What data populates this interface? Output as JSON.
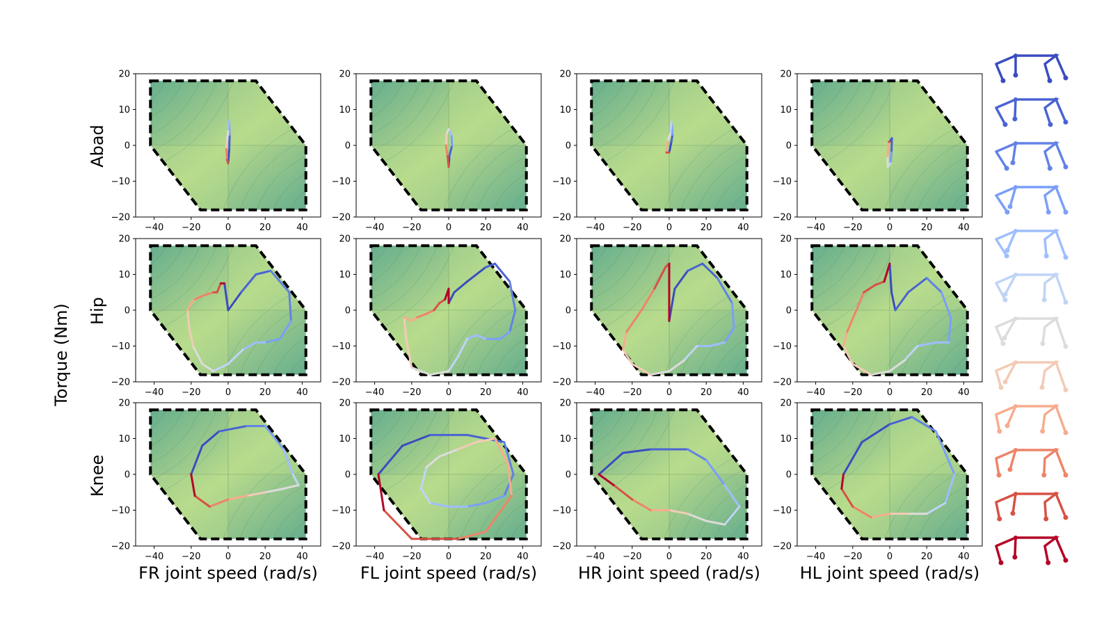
{
  "figure": {
    "ylabel_shared": "Torque (Nm)",
    "row_labels": [
      "Abad",
      "Hip",
      "Knee"
    ],
    "col_labels": [
      "FR joint speed (rad/s)",
      "FL joint speed (rad/s)",
      "HR joint speed (rad/s)",
      "HL joint speed (rad/s)"
    ]
  },
  "colors": {
    "gait_cycle_colormap": [
      "#3b4cc0",
      "#4a63d3",
      "#6282e6",
      "#7b9ff9",
      "#9ebeff",
      "#c0d4f5",
      "#dddcdc",
      "#f2cbb7",
      "#f7ac8e",
      "#ee8468",
      "#d65244",
      "#b40426"
    ],
    "feasible_boundary": "#000000",
    "background_low": "#b8dc8c",
    "background_high": "#5aa88e"
  },
  "chart_data": {
    "type": "line",
    "xlim": [
      -50,
      50
    ],
    "ylim": [
      -20,
      20
    ],
    "xticks": [
      -40,
      -20,
      0,
      20,
      40
    ],
    "yticks": [
      20,
      10,
      0,
      -10,
      -20
    ],
    "grid": false,
    "feasible_region_vertices": [
      [
        -42,
        18
      ],
      [
        15,
        18
      ],
      [
        42,
        0
      ],
      [
        42,
        -18
      ],
      [
        -15,
        -18
      ],
      [
        -42,
        0
      ]
    ],
    "panels": [
      {
        "row": "Abad",
        "col": "FR",
        "trajectory": [
          [
            0,
            -5
          ],
          [
            0.6,
            -1
          ],
          [
            0.8,
            3
          ],
          [
            0.5,
            7
          ],
          [
            0,
            4
          ],
          [
            -0.6,
            1
          ],
          [
            -1,
            -1
          ],
          [
            -0.6,
            -4
          ],
          [
            0,
            -5
          ]
        ]
      },
      {
        "row": "Abad",
        "col": "FL",
        "trajectory": [
          [
            0,
            -6
          ],
          [
            0.4,
            -3
          ],
          [
            1.8,
            0
          ],
          [
            1.5,
            3
          ],
          [
            0,
            4.5
          ],
          [
            -1.2,
            3
          ],
          [
            -1.5,
            0
          ],
          [
            -0.6,
            -3
          ],
          [
            0,
            -6
          ]
        ]
      },
      {
        "row": "Abad",
        "col": "HR",
        "trajectory": [
          [
            0,
            -2
          ],
          [
            1.2,
            1
          ],
          [
            1.8,
            3
          ],
          [
            1.2,
            6.5
          ],
          [
            0.5,
            3
          ],
          [
            -1,
            1
          ],
          [
            -1.5,
            -2
          ],
          [
            0,
            -2
          ]
        ]
      },
      {
        "row": "Abad",
        "col": "HL",
        "trajectory": [
          [
            0,
            1
          ],
          [
            1.2,
            2
          ],
          [
            1,
            -2
          ],
          [
            0.5,
            -5
          ],
          [
            -1,
            -6
          ],
          [
            -1.2,
            -3
          ],
          [
            -0.5,
            1
          ],
          [
            0,
            1
          ]
        ]
      },
      {
        "row": "Hip",
        "col": "FR",
        "trajectory": [
          [
            -2,
            7.5
          ],
          [
            0,
            0
          ],
          [
            7,
            5
          ],
          [
            15,
            10
          ],
          [
            23,
            11
          ],
          [
            33,
            5
          ],
          [
            34,
            -3
          ],
          [
            28,
            -8
          ],
          [
            20,
            -9
          ],
          [
            15,
            -9
          ],
          [
            8,
            -11
          ],
          [
            0,
            -15
          ],
          [
            -8,
            -17
          ],
          [
            -14,
            -15
          ],
          [
            -19,
            -10
          ],
          [
            -21,
            -5
          ],
          [
            -22,
            0
          ],
          [
            -20,
            2
          ],
          [
            -18,
            3
          ],
          [
            -14,
            4
          ],
          [
            -8,
            5
          ],
          [
            -6,
            5
          ],
          [
            -4,
            7.5
          ],
          [
            -2,
            7.5
          ]
        ]
      },
      {
        "row": "Hip",
        "col": "FL",
        "trajectory": [
          [
            0,
            2
          ],
          [
            3,
            5
          ],
          [
            10,
            8
          ],
          [
            20,
            12
          ],
          [
            25,
            13
          ],
          [
            33,
            8
          ],
          [
            36,
            0
          ],
          [
            33,
            -6
          ],
          [
            28,
            -8
          ],
          [
            20,
            -8
          ],
          [
            15,
            -7
          ],
          [
            10,
            -8
          ],
          [
            5,
            -13
          ],
          [
            0,
            -17
          ],
          [
            -10,
            -18
          ],
          [
            -20,
            -16
          ],
          [
            -23,
            -8
          ],
          [
            -24,
            -2
          ],
          [
            -20,
            -3
          ],
          [
            -17,
            -2
          ],
          [
            -12,
            -1
          ],
          [
            -8,
            0
          ],
          [
            -5,
            2
          ],
          [
            -2,
            3
          ],
          [
            0,
            6
          ],
          [
            0,
            2
          ]
        ]
      },
      {
        "row": "Hip",
        "col": "HR",
        "trajectory": [
          [
            0,
            -3
          ],
          [
            3,
            6
          ],
          [
            10,
            11
          ],
          [
            18,
            13
          ],
          [
            26,
            9
          ],
          [
            34,
            2
          ],
          [
            35,
            -5
          ],
          [
            30,
            -9
          ],
          [
            22,
            -10
          ],
          [
            15,
            -10
          ],
          [
            8,
            -14
          ],
          [
            0,
            -17
          ],
          [
            -10,
            -18
          ],
          [
            -20,
            -15
          ],
          [
            -25,
            -11
          ],
          [
            -23,
            -6
          ],
          [
            -15,
            0
          ],
          [
            -8,
            6
          ],
          [
            -2,
            12
          ],
          [
            0,
            13
          ],
          [
            0,
            -3
          ]
        ]
      },
      {
        "row": "Hip",
        "col": "HL",
        "trajectory": [
          [
            0,
            13
          ],
          [
            1,
            5
          ],
          [
            3,
            0
          ],
          [
            10,
            5
          ],
          [
            20,
            9
          ],
          [
            28,
            5
          ],
          [
            33,
            -2
          ],
          [
            32,
            -9
          ],
          [
            25,
            -9
          ],
          [
            15,
            -10
          ],
          [
            8,
            -14
          ],
          [
            0,
            -17
          ],
          [
            -10,
            -18
          ],
          [
            -20,
            -15
          ],
          [
            -25,
            -10
          ],
          [
            -23,
            -6
          ],
          [
            -18,
            0
          ],
          [
            -14,
            5
          ],
          [
            -8,
            7
          ],
          [
            -3,
            8
          ],
          [
            0,
            13
          ]
        ]
      },
      {
        "row": "Knee",
        "col": "FR",
        "trajectory": [
          [
            -20,
            0
          ],
          [
            -14,
            8
          ],
          [
            -5,
            12
          ],
          [
            10,
            13.5
          ],
          [
            20,
            13.5
          ],
          [
            30,
            7
          ],
          [
            35,
            0
          ],
          [
            38,
            -3
          ],
          [
            30,
            -4
          ],
          [
            20,
            -5
          ],
          [
            10,
            -6
          ],
          [
            0,
            -7
          ],
          [
            -10,
            -9
          ],
          [
            -18,
            -6
          ],
          [
            -20,
            0
          ]
        ]
      },
      {
        "row": "Knee",
        "col": "FL",
        "trajectory": [
          [
            -38,
            0
          ],
          [
            -25,
            8
          ],
          [
            -10,
            11
          ],
          [
            10,
            11
          ],
          [
            30,
            9
          ],
          [
            35,
            0
          ],
          [
            30,
            -6
          ],
          [
            20,
            -8
          ],
          [
            10,
            -9
          ],
          [
            0,
            -9
          ],
          [
            -10,
            -8
          ],
          [
            -15,
            -4
          ],
          [
            -12,
            2
          ],
          [
            -5,
            5
          ],
          [
            5,
            7
          ],
          [
            15,
            9
          ],
          [
            25,
            10
          ],
          [
            32,
            3
          ],
          [
            34,
            -6
          ],
          [
            20,
            -16
          ],
          [
            5,
            -18
          ],
          [
            -20,
            -18
          ],
          [
            -35,
            -10
          ],
          [
            -38,
            0
          ]
        ]
      },
      {
        "row": "Knee",
        "col": "HR",
        "trajectory": [
          [
            -38,
            0
          ],
          [
            -25,
            6
          ],
          [
            -10,
            7
          ],
          [
            10,
            7
          ],
          [
            20,
            4
          ],
          [
            30,
            -3
          ],
          [
            38,
            -9
          ],
          [
            30,
            -14
          ],
          [
            20,
            -13
          ],
          [
            10,
            -11
          ],
          [
            0,
            -10
          ],
          [
            -10,
            -10
          ],
          [
            -20,
            -7
          ],
          [
            -30,
            -3
          ],
          [
            -38,
            0
          ]
        ]
      },
      {
        "row": "Knee",
        "col": "HL",
        "trajectory": [
          [
            -25,
            0
          ],
          [
            -15,
            9
          ],
          [
            0,
            14
          ],
          [
            12,
            16
          ],
          [
            25,
            12
          ],
          [
            35,
            0
          ],
          [
            30,
            -8
          ],
          [
            20,
            -11
          ],
          [
            10,
            -11
          ],
          [
            0,
            -11
          ],
          [
            -10,
            -12
          ],
          [
            -20,
            -9
          ],
          [
            -26,
            -4
          ],
          [
            -25,
            0
          ]
        ]
      }
    ]
  }
}
